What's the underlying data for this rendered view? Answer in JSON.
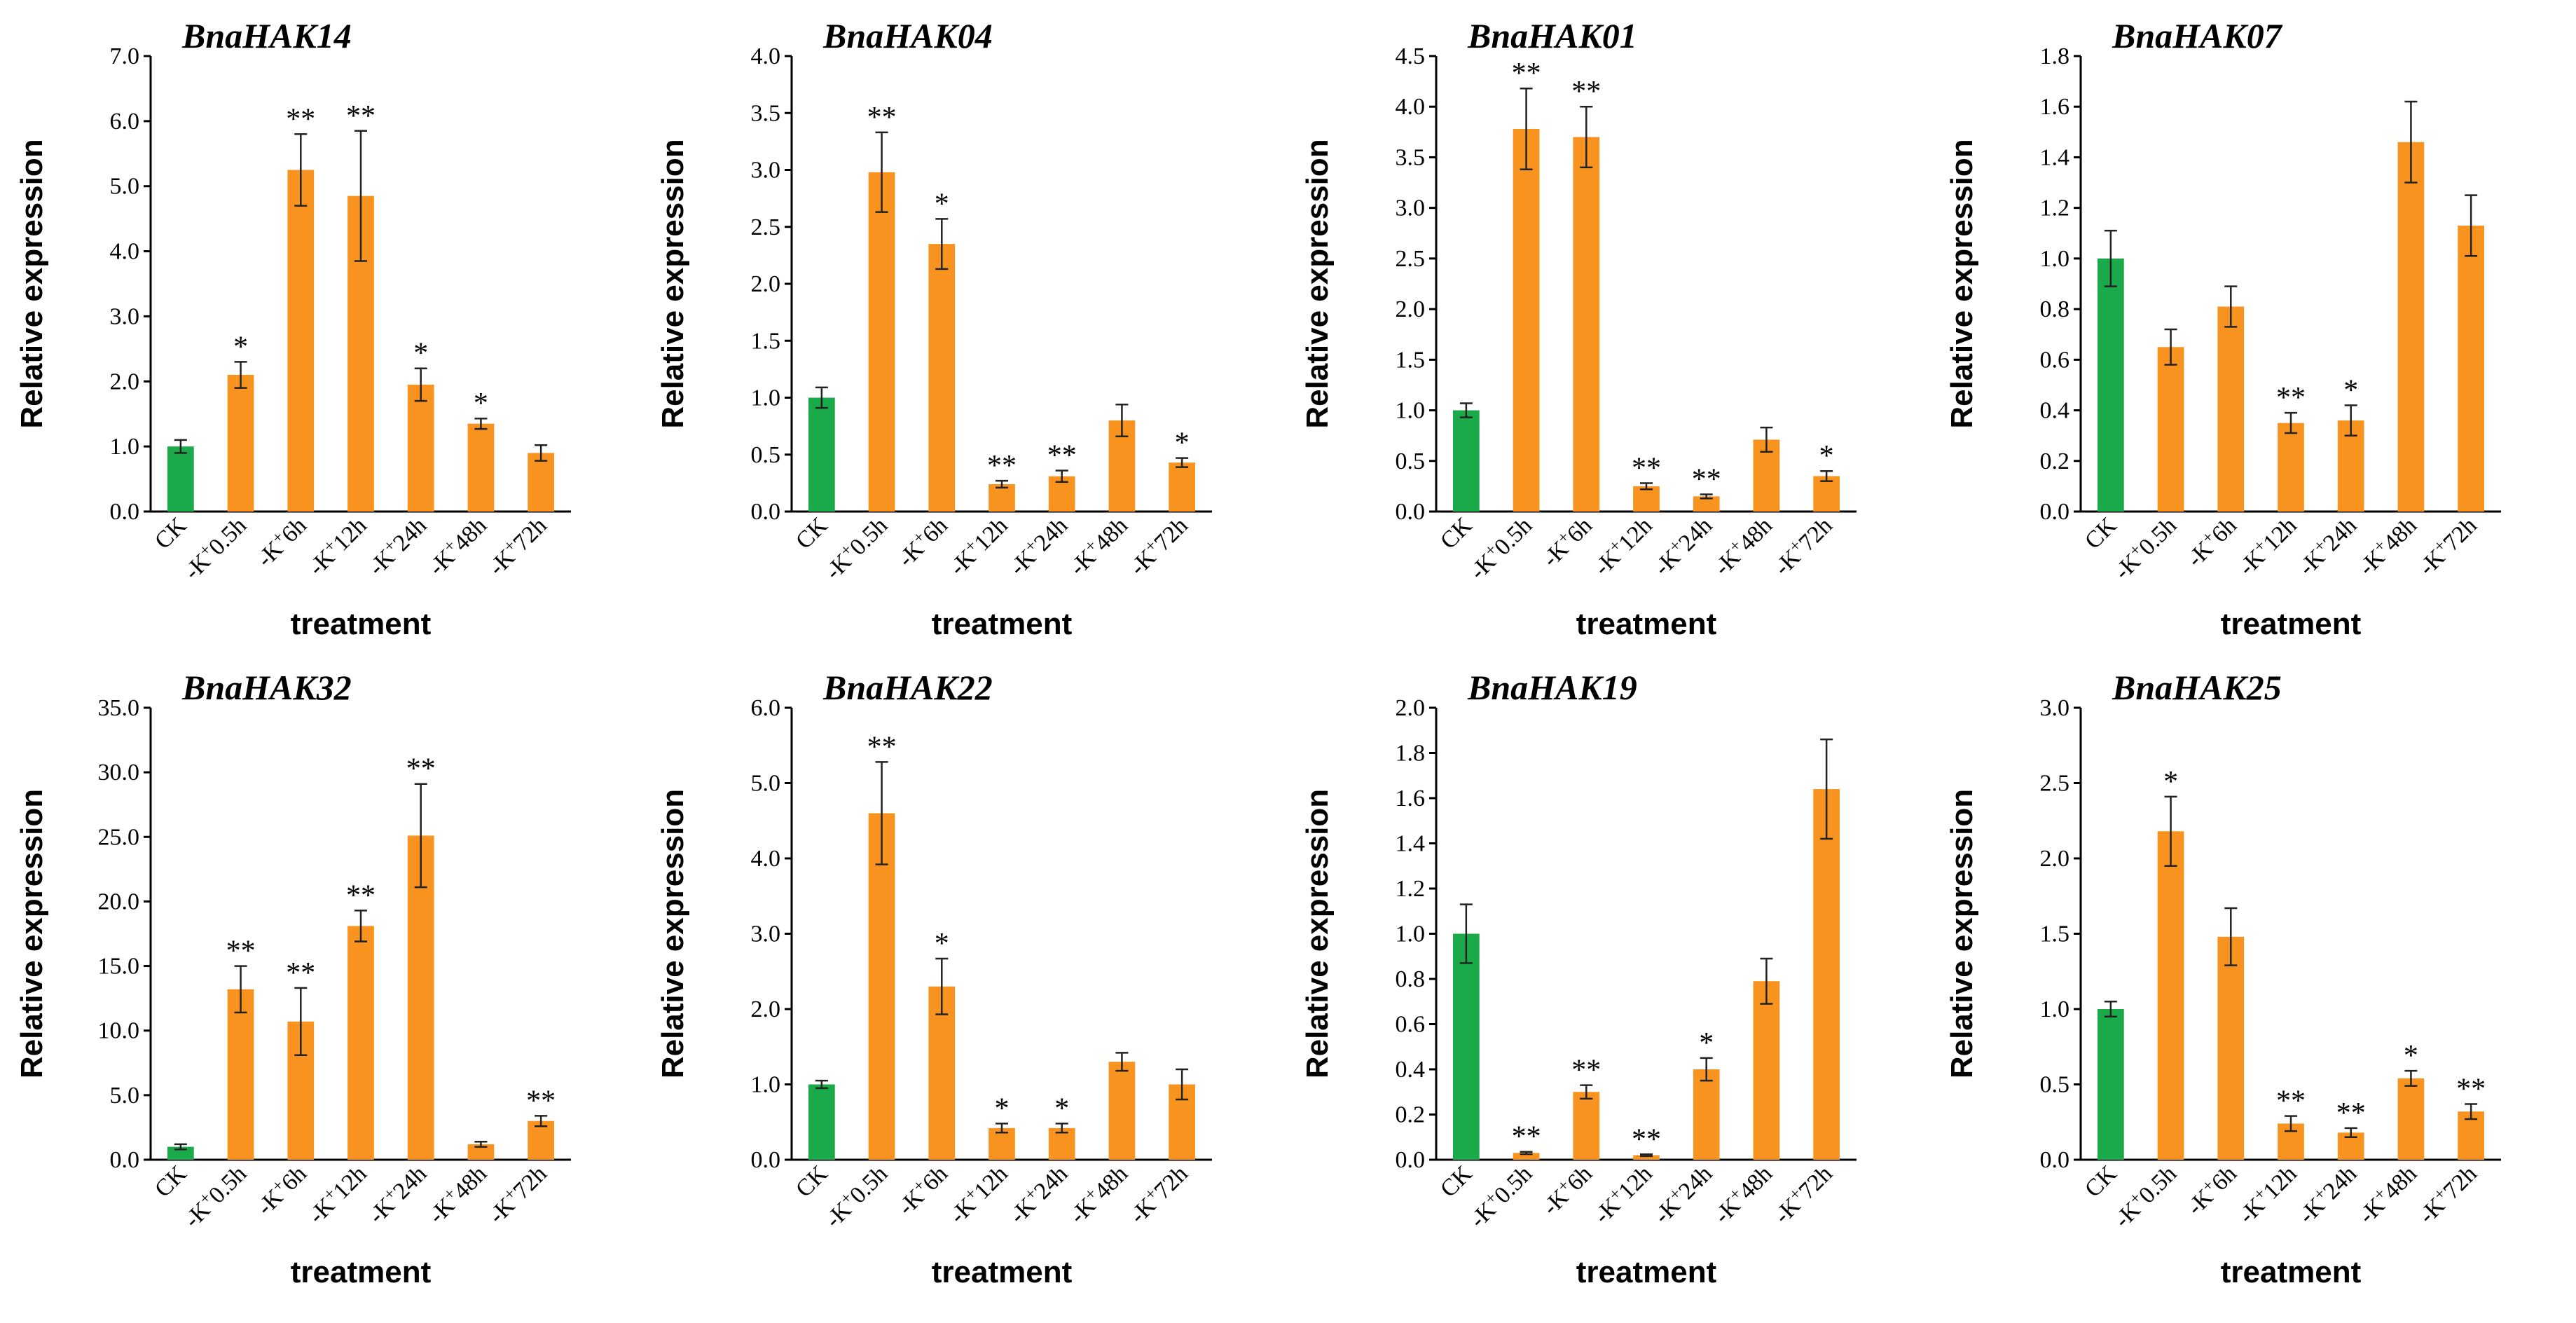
{
  "colors": {
    "control": "#1aaa4a",
    "treatment": "#f7931e",
    "axis": "#000000"
  },
  "chart_data": [
    {
      "type": "bar",
      "title": "BnaHAK14",
      "ylabel": "Relative expression",
      "xlabel": "treatment",
      "ylim": [
        0,
        7.0
      ],
      "yticks": [
        "0.0",
        "1.0",
        "2.0",
        "3.0",
        "4.0",
        "5.0",
        "6.0",
        "7.0"
      ],
      "categories": [
        {
          "pre": "CK",
          "sup": "",
          "post": ""
        },
        {
          "pre": "-K",
          "sup": "+",
          "post": "0.5h"
        },
        {
          "pre": "-K",
          "sup": "+",
          "post": "6h"
        },
        {
          "pre": "-K",
          "sup": "+",
          "post": "12h"
        },
        {
          "pre": "-K",
          "sup": "+",
          "post": "24h"
        },
        {
          "pre": "-K",
          "sup": "+",
          "post": "48h"
        },
        {
          "pre": "-K",
          "sup": "+",
          "post": "72h"
        }
      ],
      "values": [
        1.0,
        2.1,
        5.25,
        4.85,
        1.95,
        1.35,
        0.9
      ],
      "errors": [
        0.1,
        0.2,
        0.55,
        1.0,
        0.25,
        0.08,
        0.12
      ],
      "significance": [
        "",
        "*",
        "**",
        "**",
        "*",
        "*",
        ""
      ]
    },
    {
      "type": "bar",
      "title": "BnaHAK04",
      "ylabel": "Relative expression",
      "xlabel": "treatment",
      "ylim": [
        0,
        4.0
      ],
      "yticks": [
        "0.0",
        "0.5",
        "1.0",
        "1.5",
        "2.0",
        "2.5",
        "3.0",
        "3.5",
        "4.0"
      ],
      "categories": [
        {
          "pre": "CK",
          "sup": "",
          "post": ""
        },
        {
          "pre": "-K",
          "sup": "+",
          "post": "0.5h"
        },
        {
          "pre": "-K",
          "sup": "+",
          "post": "6h"
        },
        {
          "pre": "-K",
          "sup": "+",
          "post": "12h"
        },
        {
          "pre": "-K",
          "sup": "+",
          "post": "24h"
        },
        {
          "pre": "-K",
          "sup": "+",
          "post": "48h"
        },
        {
          "pre": "-K",
          "sup": "+",
          "post": "72h"
        }
      ],
      "values": [
        1.0,
        2.98,
        2.35,
        0.24,
        0.31,
        0.8,
        0.43
      ],
      "errors": [
        0.09,
        0.35,
        0.22,
        0.03,
        0.05,
        0.14,
        0.04
      ],
      "significance": [
        "",
        "**",
        "*",
        "**",
        "**",
        "",
        "*"
      ]
    },
    {
      "type": "bar",
      "title": "BnaHAK01",
      "ylabel": "Relative expression",
      "xlabel": "treatment",
      "ylim": [
        0,
        4.5
      ],
      "yticks": [
        "0.0",
        "0.5",
        "1.0",
        "1.5",
        "2.0",
        "2.5",
        "3.0",
        "3.5",
        "4.0",
        "4.5"
      ],
      "categories": [
        {
          "pre": "CK",
          "sup": "",
          "post": ""
        },
        {
          "pre": "-K",
          "sup": "+",
          "post": "0.5h"
        },
        {
          "pre": "-K",
          "sup": "+",
          "post": "6h"
        },
        {
          "pre": "-K",
          "sup": "+",
          "post": "12h"
        },
        {
          "pre": "-K",
          "sup": "+",
          "post": "24h"
        },
        {
          "pre": "-K",
          "sup": "+",
          "post": "48h"
        },
        {
          "pre": "-K",
          "sup": "+",
          "post": "72h"
        }
      ],
      "values": [
        1.0,
        3.78,
        3.7,
        0.25,
        0.15,
        0.71,
        0.35
      ],
      "errors": [
        0.07,
        0.4,
        0.3,
        0.03,
        0.02,
        0.12,
        0.05
      ],
      "significance": [
        "",
        "**",
        "**",
        "**",
        "**",
        "",
        "*"
      ]
    },
    {
      "type": "bar",
      "title": "BnaHAK07",
      "ylabel": "Relative expression",
      "xlabel": "treatment",
      "ylim": [
        0,
        1.8
      ],
      "yticks": [
        "0.0",
        "0.2",
        "0.4",
        "0.6",
        "0.8",
        "1.0",
        "1.2",
        "1.4",
        "1.6",
        "1.8"
      ],
      "categories": [
        {
          "pre": "CK",
          "sup": "",
          "post": ""
        },
        {
          "pre": "-K",
          "sup": "+",
          "post": "0.5h"
        },
        {
          "pre": "-K",
          "sup": "+",
          "post": "6h"
        },
        {
          "pre": "-K",
          "sup": "+",
          "post": "12h"
        },
        {
          "pre": "-K",
          "sup": "+",
          "post": "24h"
        },
        {
          "pre": "-K",
          "sup": "+",
          "post": "48h"
        },
        {
          "pre": "-K",
          "sup": "+",
          "post": "72h"
        }
      ],
      "values": [
        1.0,
        0.65,
        0.81,
        0.35,
        0.36,
        1.46,
        1.13
      ],
      "errors": [
        0.11,
        0.07,
        0.08,
        0.04,
        0.06,
        0.16,
        0.12
      ],
      "significance": [
        "",
        "",
        "",
        "**",
        "*",
        "",
        ""
      ]
    },
    {
      "type": "bar",
      "title": "BnaHAK32",
      "ylabel": "Relative expression",
      "xlabel": "treatment",
      "ylim": [
        0,
        35.0
      ],
      "yticks": [
        "0.0",
        "5.0",
        "10.0",
        "15.0",
        "20.0",
        "25.0",
        "30.0",
        "35.0"
      ],
      "categories": [
        {
          "pre": "CK",
          "sup": "",
          "post": ""
        },
        {
          "pre": "-K",
          "sup": "+",
          "post": "0.5h"
        },
        {
          "pre": "-K",
          "sup": "+",
          "post": "6h"
        },
        {
          "pre": "-K",
          "sup": "+",
          "post": "12h"
        },
        {
          "pre": "-K",
          "sup": "+",
          "post": "24h"
        },
        {
          "pre": "-K",
          "sup": "+",
          "post": "48h"
        },
        {
          "pre": "-K",
          "sup": "+",
          "post": "72h"
        }
      ],
      "values": [
        1.0,
        13.2,
        10.7,
        18.1,
        25.1,
        1.2,
        3.0
      ],
      "errors": [
        0.2,
        1.8,
        2.6,
        1.2,
        4.0,
        0.2,
        0.4
      ],
      "significance": [
        "",
        "**",
        "**",
        "**",
        "**",
        "",
        "**"
      ]
    },
    {
      "type": "bar",
      "title": "BnaHAK22",
      "ylabel": "Relative expression",
      "xlabel": "treatment",
      "ylim": [
        0,
        6.0
      ],
      "yticks": [
        "0.0",
        "1.0",
        "2.0",
        "3.0",
        "4.0",
        "5.0",
        "6.0"
      ],
      "categories": [
        {
          "pre": "CK",
          "sup": "",
          "post": ""
        },
        {
          "pre": "-K",
          "sup": "+",
          "post": "0.5h"
        },
        {
          "pre": "-K",
          "sup": "+",
          "post": "6h"
        },
        {
          "pre": "-K",
          "sup": "+",
          "post": "12h"
        },
        {
          "pre": "-K",
          "sup": "+",
          "post": "24h"
        },
        {
          "pre": "-K",
          "sup": "+",
          "post": "48h"
        },
        {
          "pre": "-K",
          "sup": "+",
          "post": "72h"
        }
      ],
      "values": [
        1.0,
        4.6,
        2.3,
        0.42,
        0.42,
        1.3,
        1.0
      ],
      "errors": [
        0.05,
        0.68,
        0.37,
        0.06,
        0.06,
        0.12,
        0.2
      ],
      "significance": [
        "",
        "**",
        "*",
        "*",
        "*",
        "",
        ""
      ]
    },
    {
      "type": "bar",
      "title": "BnaHAK19",
      "ylabel": "Relative expression",
      "xlabel": "treatment",
      "ylim": [
        0,
        2.0
      ],
      "yticks": [
        "0.0",
        "0.2",
        "0.4",
        "0.6",
        "0.8",
        "1.0",
        "1.2",
        "1.4",
        "1.6",
        "1.8",
        "2.0"
      ],
      "categories": [
        {
          "pre": "CK",
          "sup": "",
          "post": ""
        },
        {
          "pre": "-K",
          "sup": "+",
          "post": "0.5h"
        },
        {
          "pre": "-K",
          "sup": "+",
          "post": "6h"
        },
        {
          "pre": "-K",
          "sup": "+",
          "post": "12h"
        },
        {
          "pre": "-K",
          "sup": "+",
          "post": "24h"
        },
        {
          "pre": "-K",
          "sup": "+",
          "post": "48h"
        },
        {
          "pre": "-K",
          "sup": "+",
          "post": "72h"
        }
      ],
      "values": [
        1.0,
        0.03,
        0.3,
        0.02,
        0.4,
        0.79,
        1.64
      ],
      "errors": [
        0.13,
        0.005,
        0.03,
        0.004,
        0.05,
        0.1,
        0.22
      ],
      "significance": [
        "",
        "**",
        "**",
        "**",
        "*",
        "",
        ""
      ]
    },
    {
      "type": "bar",
      "title": "BnaHAK25",
      "ylabel": "Relative expression",
      "xlabel": "treatment",
      "ylim": [
        0,
        3.0
      ],
      "yticks": [
        "0.0",
        "0.5",
        "1.0",
        "1.5",
        "2.0",
        "2.5",
        "3.0"
      ],
      "categories": [
        {
          "pre": "CK",
          "sup": "",
          "post": ""
        },
        {
          "pre": "-K",
          "sup": "+",
          "post": "0.5h"
        },
        {
          "pre": "-K",
          "sup": "+",
          "post": "6h"
        },
        {
          "pre": "-K",
          "sup": "+",
          "post": "12h"
        },
        {
          "pre": "-K",
          "sup": "+",
          "post": "24h"
        },
        {
          "pre": "-K",
          "sup": "+",
          "post": "48h"
        },
        {
          "pre": "-K",
          "sup": "+",
          "post": "72h"
        }
      ],
      "values": [
        1.0,
        2.18,
        1.48,
        0.24,
        0.18,
        0.54,
        0.32
      ],
      "errors": [
        0.05,
        0.23,
        0.19,
        0.05,
        0.03,
        0.05,
        0.05
      ],
      "significance": [
        "",
        "*",
        "",
        "**",
        "**",
        "*",
        "**"
      ]
    }
  ]
}
